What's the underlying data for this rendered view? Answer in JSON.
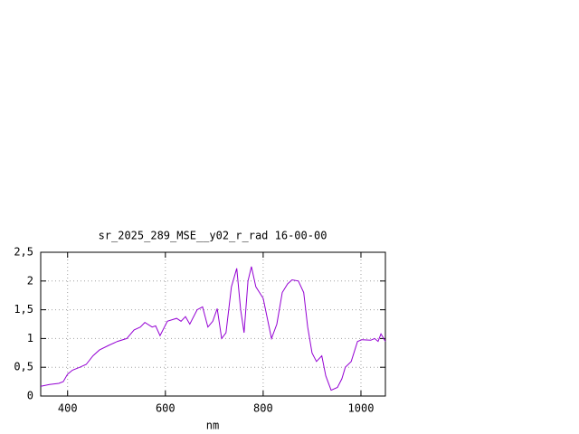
{
  "chart_data": {
    "type": "line",
    "title": "sr_2025_289_MSE__y02_r_rad 16-00-00",
    "x_label": "nm",
    "x": [
      345,
      363,
      382,
      391,
      400,
      410,
      425,
      438,
      452,
      465,
      484,
      502,
      521,
      536,
      549,
      558,
      573,
      580,
      589,
      604,
      623,
      632,
      641,
      650,
      665,
      676,
      687,
      697,
      706,
      715,
      724,
      735,
      746,
      754,
      761,
      769,
      776,
      785,
      800,
      817,
      828,
      839,
      850,
      859,
      872,
      883,
      891,
      900,
      909,
      920,
      928,
      939,
      952,
      961,
      968,
      980,
      993,
      1002,
      1020,
      1028,
      1035,
      1041,
      1050
    ],
    "series": [
      {
        "color": "#9400d3",
        "values": [
          0.17,
          0.2,
          0.22,
          0.25,
          0.38,
          0.45,
          0.5,
          0.55,
          0.7,
          0.8,
          0.88,
          0.95,
          1.0,
          1.15,
          1.2,
          1.28,
          1.2,
          1.22,
          1.05,
          1.3,
          1.35,
          1.3,
          1.38,
          1.25,
          1.5,
          1.55,
          1.2,
          1.3,
          1.52,
          1.0,
          1.1,
          1.9,
          2.22,
          1.5,
          1.1,
          2.0,
          2.25,
          1.9,
          1.7,
          1.0,
          1.25,
          1.8,
          1.95,
          2.02,
          2.0,
          1.8,
          1.2,
          0.75,
          0.6,
          0.7,
          0.35,
          0.1,
          0.15,
          0.3,
          0.5,
          0.6,
          0.95,
          0.98,
          0.97,
          1.0,
          0.95,
          1.08,
          0.95
        ]
      }
    ],
    "xlim": [
      345,
      1050
    ],
    "ylim": [
      0,
      2.5
    ],
    "xticks": [
      400,
      600,
      800,
      1000
    ],
    "yticks": [
      0,
      {
        "value": 0.5,
        "label": "0,5"
      },
      1,
      {
        "value": 1.5,
        "label": "1,5"
      },
      2,
      {
        "value": 2.5,
        "label": "2,5"
      }
    ],
    "grid": true
  }
}
